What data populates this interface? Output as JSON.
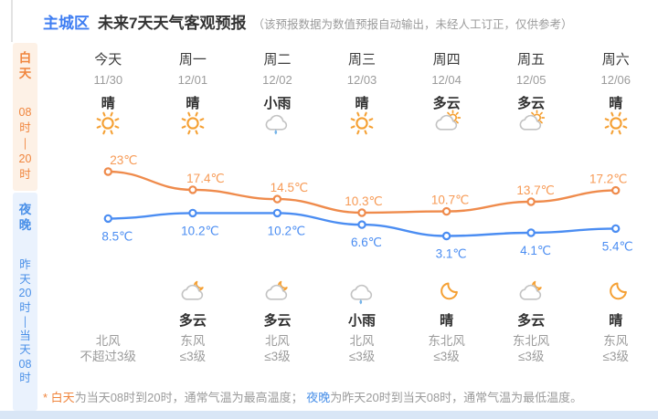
{
  "header": {
    "region": "主城区",
    "title": "未来7天天气客观预报",
    "disclaimer": "（该预报数据为数值预报自动输出，未经人工订正，仅供参考）"
  },
  "sidebar": {
    "day_panel": {
      "label": "白天",
      "time": "08时—20时",
      "chars": [
        "白",
        "天",
        "",
        "08",
        "时",
        "—",
        "20",
        "时"
      ]
    },
    "night_panel": {
      "label": "夜晚",
      "time": "昨天20时—当天08时",
      "chars": [
        "夜",
        "晚",
        "",
        "昨",
        "天",
        "20",
        "时",
        "—",
        "当",
        "天",
        "08",
        "时"
      ]
    }
  },
  "columns": [
    {
      "day": "今天",
      "date": "11/30",
      "day_condition": "晴",
      "day_icon": "sun",
      "night_icon": "",
      "night_condition": "",
      "wind_direction": "北风",
      "wind_level": "不超过3级"
    },
    {
      "day": "周一",
      "date": "12/01",
      "day_condition": "晴",
      "day_icon": "sun",
      "night_icon": "cloud-moon",
      "night_condition": "多云",
      "wind_direction": "东风",
      "wind_level": "≤3级"
    },
    {
      "day": "周二",
      "date": "12/02",
      "day_condition": "小雨",
      "day_icon": "cloud-rain",
      "night_icon": "cloud-moon",
      "night_condition": "多云",
      "wind_direction": "北风",
      "wind_level": "≤3级"
    },
    {
      "day": "周三",
      "date": "12/03",
      "day_condition": "晴",
      "day_icon": "sun",
      "night_icon": "cloud-rain",
      "night_condition": "小雨",
      "wind_direction": "北风",
      "wind_level": "≤3级"
    },
    {
      "day": "周四",
      "date": "12/04",
      "day_condition": "多云",
      "day_icon": "cloud-sun",
      "night_icon": "moon",
      "night_condition": "晴",
      "wind_direction": "东北风",
      "wind_level": "≤3级"
    },
    {
      "day": "周五",
      "date": "12/05",
      "day_condition": "多云",
      "day_icon": "cloud-sun",
      "night_icon": "cloud-moon",
      "night_condition": "多云",
      "wind_direction": "东北风",
      "wind_level": "≤3级"
    },
    {
      "day": "周六",
      "date": "12/06",
      "day_condition": "晴",
      "day_icon": "sun",
      "night_icon": "moon",
      "night_condition": "晴",
      "wind_direction": "东风",
      "wind_level": "≤3级"
    }
  ],
  "chart_data": {
    "type": "line",
    "categories": [
      "今天",
      "周一",
      "周二",
      "周三",
      "周四",
      "周五",
      "周六"
    ],
    "series": [
      {
        "name": "白天最高温度",
        "color": "#ef8b4c",
        "label_color": "#f79a55",
        "values": [
          23,
          17.4,
          14.5,
          10.3,
          10.7,
          13.7,
          17.2
        ],
        "labels": [
          "23℃",
          "17.4℃",
          "14.5℃",
          "10.3℃",
          "10.7℃",
          "13.7℃",
          "17.2℃"
        ]
      },
      {
        "name": "夜晚最低温度",
        "color": "#4b8df2",
        "label_color": "#4b8df2",
        "values": [
          8.5,
          10.2,
          10.2,
          6.6,
          3.1,
          4.1,
          5.4
        ],
        "labels": [
          "8.5℃",
          "10.2℃",
          "10.2℃",
          "6.6℃",
          "3.1℃",
          "4.1℃",
          "5.4℃"
        ]
      }
    ],
    "unit": "℃",
    "legend": "none",
    "grid": false
  },
  "footer": {
    "segments": [
      {
        "text": "* ",
        "color": "orange"
      },
      {
        "text": "白天",
        "color": "orange"
      },
      {
        "text": "为当天08时到20时，通常气温为最高温度； ",
        "color": "gray"
      },
      {
        "text": "夜晚",
        "color": "blue"
      },
      {
        "text": "为昨天20时到当天08时，通常气温为最低温度。",
        "color": "gray"
      }
    ]
  },
  "colors": {
    "accent_blue": "#3f7ef2",
    "line_orange": "#ef8b4c",
    "line_blue": "#4b8df2",
    "day_panel_bg": "#fdf1e6",
    "day_panel_text": "#f0853d",
    "night_panel_bg": "#eaf2fd",
    "night_panel_text": "#4a90e8",
    "bottom_band": "#d9e6f6",
    "icon_gray": "#c3c3c3",
    "icon_orange": "#f5a033",
    "rain_blue": "#74b3e8",
    "text_dark": "#333333",
    "text_gray": "#9b9b9b"
  }
}
